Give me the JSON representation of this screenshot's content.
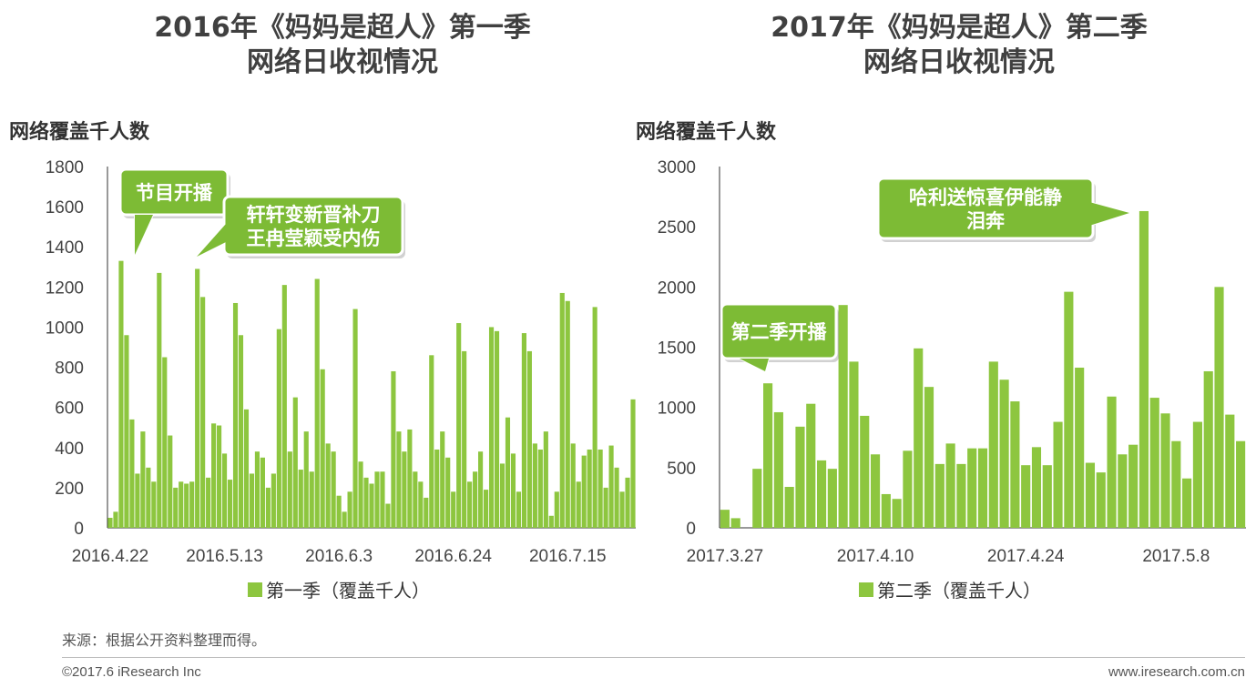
{
  "colors": {
    "bar": "#8dc63f",
    "callout": "#7dbb35",
    "axis": "#333333"
  },
  "chart_data": [
    {
      "type": "bar",
      "title": [
        "2016年《妈妈是超人》第一季",
        "网络日收视情况"
      ],
      "ylabel": "网络覆盖千人数",
      "ylim": [
        0,
        1800
      ],
      "yticks": [
        0,
        200,
        400,
        600,
        800,
        1000,
        1200,
        1400,
        1600,
        1800
      ],
      "x_tick_labels": [
        "2016.4.22",
        "2016.5.13",
        "2016.6.3",
        "2016.6.24",
        "2016.7.15"
      ],
      "x_tick_index": [
        0,
        21,
        42,
        63,
        84
      ],
      "legend": "第一季（覆盖千人）",
      "series": [
        {
          "name": "第一季（覆盖千人）",
          "values": [
            50,
            80,
            1330,
            960,
            540,
            270,
            480,
            300,
            230,
            1270,
            850,
            460,
            200,
            230,
            220,
            230,
            1290,
            1150,
            250,
            520,
            510,
            370,
            240,
            1120,
            960,
            590,
            270,
            380,
            350,
            200,
            270,
            990,
            1210,
            380,
            650,
            290,
            480,
            280,
            1240,
            790,
            420,
            380,
            160,
            80,
            180,
            1090,
            330,
            250,
            220,
            280,
            280,
            120,
            780,
            480,
            380,
            490,
            280,
            230,
            150,
            860,
            390,
            480,
            350,
            180,
            1020,
            880,
            230,
            280,
            380,
            190,
            1000,
            980,
            320,
            550,
            370,
            180,
            970,
            880,
            420,
            390,
            480,
            60,
            180,
            1170,
            1130,
            420,
            230,
            360,
            390,
            1100,
            390,
            200,
            410,
            300,
            180,
            250,
            640
          ]
        }
      ],
      "callouts": [
        "节目开播",
        "轩轩变新晋补刀王冉莹颖受内伤"
      ]
    },
    {
      "type": "bar",
      "title": [
        "2017年《妈妈是超人》第二季",
        "网络日收视情况"
      ],
      "ylabel": "网络覆盖千人数",
      "ylim": [
        0,
        3000
      ],
      "yticks": [
        0,
        500,
        1000,
        1500,
        2000,
        2500,
        3000
      ],
      "x_tick_labels": [
        "2017.3.27",
        "2017.4.10",
        "2017.4.24",
        "2017.5.8"
      ],
      "x_tick_index": [
        0,
        14,
        28,
        42
      ],
      "legend": "第二季（覆盖千人）",
      "series": [
        {
          "name": "第二季（覆盖千人）",
          "values": [
            150,
            80,
            0,
            490,
            1200,
            960,
            340,
            840,
            1030,
            560,
            490,
            1850,
            1380,
            930,
            610,
            280,
            240,
            640,
            1490,
            1170,
            530,
            700,
            530,
            660,
            660,
            1380,
            1230,
            1050,
            520,
            670,
            520,
            880,
            1960,
            1330,
            540,
            460,
            1090,
            610,
            690,
            2630,
            1080,
            950,
            720,
            410,
            880,
            1300,
            2000,
            940,
            720
          ]
        }
      ],
      "callouts": [
        "第二季开播",
        "哈利送惊喜伊能静泪奔"
      ]
    }
  ],
  "footer": {
    "source": "来源：根据公开资料整理而得。",
    "copyright": "©2017.6 iResearch Inc",
    "url": "www.iresearch.com.cn"
  }
}
